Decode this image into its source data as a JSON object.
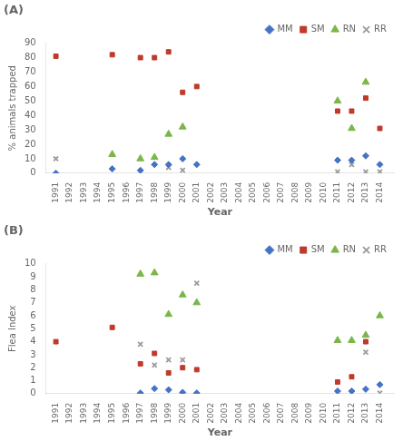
{
  "chart_data": [
    {
      "type": "scatter",
      "title": "(A)",
      "xlabel": "Year",
      "ylabel": "% animals trapped",
      "xlim": [
        1990.3,
        2015.0
      ],
      "xticks": [
        1991,
        1992,
        1993,
        1994,
        1995,
        1996,
        1997,
        1998,
        1999,
        2000,
        2001,
        2002,
        2003,
        2004,
        2005,
        2006,
        2007,
        2008,
        2009,
        2010,
        2011,
        2012,
        2013,
        2014
      ],
      "ylim": [
        0,
        90
      ],
      "yticks": [
        0,
        10,
        20,
        30,
        40,
        50,
        60,
        70,
        80,
        90
      ],
      "grid": false,
      "legend": "upper right",
      "series": [
        {
          "name": "MM",
          "color": "#4472c4",
          "marker": "diamond",
          "x": [
            1991,
            1995,
            1997,
            1998,
            1999,
            2000,
            2001,
            2011,
            2012,
            2013,
            2014
          ],
          "values": [
            0,
            3,
            2,
            6,
            6,
            10,
            6,
            9,
            9,
            12,
            6
          ]
        },
        {
          "name": "SM",
          "color": "#c0392b",
          "marker": "square",
          "x": [
            1991,
            1995,
            1997,
            1998,
            1999,
            2000,
            2001,
            2011,
            2012,
            2013,
            2014
          ],
          "values": [
            81,
            82,
            80,
            80,
            84,
            56,
            60,
            43,
            43,
            52,
            31
          ]
        },
        {
          "name": "RN",
          "color": "#7ab648",
          "marker": "triangle",
          "x": [
            1995,
            1997,
            1998,
            1999,
            2000,
            2011,
            2012,
            2013
          ],
          "values": [
            13,
            10,
            11,
            27,
            32,
            50,
            31,
            63
          ]
        },
        {
          "name": "RR",
          "color": "#9b9b9b",
          "marker": "x",
          "x": [
            1991,
            1999,
            2000,
            2011,
            2012,
            2013,
            2014
          ],
          "values": [
            10,
            4,
            2,
            1,
            6,
            1,
            1
          ]
        }
      ]
    },
    {
      "type": "scatter",
      "title": "(B)",
      "xlabel": "Year",
      "ylabel": "Flea Index",
      "xlim": [
        1990.3,
        2015.0
      ],
      "xticks": [
        1991,
        1992,
        1993,
        1994,
        1995,
        1996,
        1997,
        1998,
        1999,
        2000,
        2001,
        2002,
        2003,
        2004,
        2005,
        2006,
        2007,
        2008,
        2009,
        2010,
        2011,
        2012,
        2013,
        2014
      ],
      "ylim": [
        0,
        10
      ],
      "yticks": [
        0,
        1,
        2,
        3,
        4,
        5,
        6,
        7,
        8,
        9,
        10
      ],
      "grid": false,
      "legend": "upper right",
      "series": [
        {
          "name": "MM",
          "color": "#4472c4",
          "marker": "diamond",
          "x": [
            1997,
            1998,
            1999,
            2000,
            2001,
            2011,
            2012,
            2013,
            2014
          ],
          "values": [
            0.05,
            0.4,
            0.3,
            0.1,
            0.05,
            0.2,
            0.2,
            0.35,
            0.7
          ]
        },
        {
          "name": "SM",
          "color": "#c0392b",
          "marker": "square",
          "x": [
            1991,
            1995,
            1997,
            1998,
            1999,
            2000,
            2001,
            2011,
            2012,
            2013
          ],
          "values": [
            4.0,
            5.1,
            2.3,
            3.1,
            1.6,
            2.0,
            1.85,
            0.9,
            1.3,
            4.0
          ]
        },
        {
          "name": "RN",
          "color": "#7ab648",
          "marker": "triangle",
          "x": [
            1997,
            1998,
            1999,
            2000,
            2001,
            2011,
            2012,
            2013,
            2014
          ],
          "values": [
            9.2,
            9.3,
            6.1,
            7.6,
            7.0,
            4.1,
            4.1,
            4.5,
            6.0
          ]
        },
        {
          "name": "RR",
          "color": "#9b9b9b",
          "marker": "x",
          "x": [
            1997,
            1998,
            1999,
            2000,
            2001,
            2012,
            2013,
            2014
          ],
          "values": [
            3.8,
            2.2,
            2.6,
            2.6,
            8.5,
            0.05,
            3.2,
            0.05
          ]
        }
      ]
    }
  ]
}
